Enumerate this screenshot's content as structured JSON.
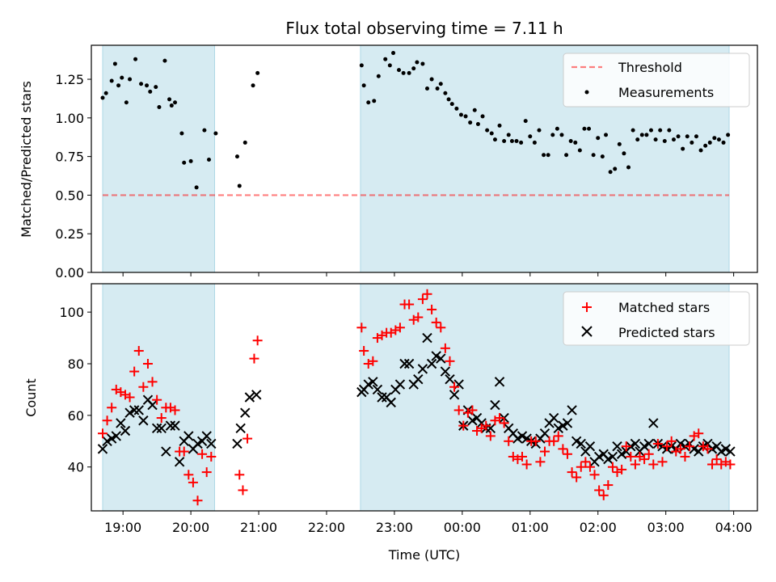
{
  "colors": {
    "band": "#add8e6",
    "threshold": "#ff0000",
    "measurement": "#000000",
    "matched": "#ff0000",
    "predicted": "#000000"
  },
  "chart_data": [
    {
      "type": "scatter",
      "title": "Flux total observing time = 7.11 h",
      "ylabel": "Matched/Predicted stars",
      "xlabel": "",
      "xlim": [
        "18:32",
        "04:21"
      ],
      "ylim": [
        0,
        1.47
      ],
      "yticks": [
        "0.00",
        "0.25",
        "0.50",
        "0.75",
        "1.00",
        "1.25"
      ],
      "shaded_intervals": [
        [
          "18:42",
          "20:21"
        ],
        [
          "22:30",
          "03:56"
        ]
      ],
      "threshold": {
        "name": "Threshold",
        "value": 0.5,
        "x_range": [
          "18:42",
          "03:56"
        ]
      },
      "legend": {
        "position": "top-right",
        "entries": [
          "Threshold",
          "Measurements"
        ]
      },
      "series": [
        {
          "name": "Measurements",
          "marker": "dot",
          "x": [
            "18:42",
            "18:45",
            "18:50",
            "18:53",
            "18:56",
            "18:59",
            "19:03",
            "19:06",
            "19:11",
            "19:16",
            "19:21",
            "19:24",
            "19:29",
            "19:32",
            "19:37",
            "19:41",
            "19:43",
            "19:46",
            "19:52",
            "19:54",
            "20:00",
            "20:05",
            "20:12",
            "20:16",
            "20:22",
            "20:41",
            "20:43",
            "20:48",
            "20:55",
            "20:59",
            "22:31",
            "22:33",
            "22:37",
            "22:42",
            "22:46",
            "22:52",
            "22:56",
            "22:59",
            "23:04",
            "23:08",
            "23:13",
            "23:17",
            "23:20",
            "23:25",
            "23:29",
            "23:33",
            "23:38",
            "23:41",
            "23:45",
            "23:48",
            "23:51",
            "23:55",
            "23:59",
            "00:03",
            "00:07",
            "00:11",
            "00:14",
            "00:18",
            "00:22",
            "00:26",
            "00:29",
            "00:33",
            "00:37",
            "00:41",
            "00:44",
            "00:48",
            "00:52",
            "00:56",
            "01:00",
            "01:04",
            "01:08",
            "01:12",
            "01:16",
            "01:20",
            "01:24",
            "01:28",
            "01:32",
            "01:36",
            "01:40",
            "01:44",
            "01:48",
            "01:52",
            "01:56",
            "02:00",
            "02:04",
            "02:07",
            "02:11",
            "02:15",
            "02:19",
            "02:23",
            "02:27",
            "02:31",
            "02:35",
            "02:39",
            "02:43",
            "02:47",
            "02:51",
            "02:55",
            "02:59",
            "03:03",
            "03:07",
            "03:11",
            "03:15",
            "03:19",
            "03:23",
            "03:27",
            "03:31",
            "03:35",
            "03:39",
            "03:43",
            "03:47",
            "03:51",
            "03:55"
          ],
          "y": [
            1.13,
            1.16,
            1.24,
            1.35,
            1.21,
            1.26,
            1.1,
            1.25,
            1.38,
            1.22,
            1.21,
            1.17,
            1.2,
            1.07,
            1.37,
            1.12,
            1.08,
            1.1,
            0.9,
            0.71,
            0.72,
            0.55,
            0.92,
            0.73,
            0.9,
            0.75,
            0.56,
            0.84,
            1.21,
            1.29,
            1.34,
            1.21,
            1.1,
            1.11,
            1.27,
            1.38,
            1.34,
            1.42,
            1.31,
            1.29,
            1.29,
            1.32,
            1.36,
            1.35,
            1.19,
            1.25,
            1.19,
            1.22,
            1.16,
            1.12,
            1.09,
            1.06,
            1.02,
            1.01,
            0.97,
            1.05,
            0.96,
            1.01,
            0.92,
            0.9,
            0.86,
            0.95,
            0.85,
            0.89,
            0.85,
            0.85,
            0.84,
            0.98,
            0.88,
            0.84,
            0.92,
            0.76,
            0.76,
            0.89,
            0.93,
            0.89,
            0.76,
            0.85,
            0.84,
            0.79,
            0.93,
            0.93,
            0.76,
            0.87,
            0.75,
            0.89,
            0.65,
            0.67,
            0.83,
            0.77,
            0.68,
            0.92,
            0.86,
            0.89,
            0.89,
            0.92,
            0.86,
            0.92,
            0.85,
            0.92,
            0.86,
            0.88,
            0.8,
            0.88,
            0.84,
            0.88,
            0.79,
            0.82,
            0.84,
            0.87,
            0.86,
            0.84,
            0.89
          ]
        }
      ]
    },
    {
      "type": "scatter",
      "title": "",
      "ylabel": "Count",
      "xlabel": "Time (UTC)",
      "xlim": [
        "18:32",
        "04:21"
      ],
      "ylim": [
        23,
        111
      ],
      "yticks": [
        "40",
        "60",
        "80",
        "100"
      ],
      "xticks": [
        "19:00",
        "20:00",
        "21:00",
        "22:00",
        "23:00",
        "00:00",
        "01:00",
        "02:00",
        "03:00",
        "04:00"
      ],
      "shaded_intervals": [
        [
          "18:42",
          "20:21"
        ],
        [
          "22:30",
          "03:56"
        ]
      ],
      "legend": {
        "position": "top-right",
        "entries": [
          "Matched stars",
          "Predicted stars"
        ]
      },
      "series": [
        {
          "name": "Matched stars",
          "marker": "plus",
          "x": [
            "18:42",
            "18:46",
            "18:50",
            "18:54",
            "18:58",
            "19:02",
            "19:06",
            "19:10",
            "19:14",
            "19:18",
            "19:22",
            "19:26",
            "19:30",
            "19:34",
            "19:38",
            "19:42",
            "19:46",
            "19:50",
            "19:54",
            "19:58",
            "20:02",
            "20:06",
            "20:10",
            "20:14",
            "20:18",
            "20:43",
            "20:46",
            "20:50",
            "20:56",
            "20:59",
            "22:31",
            "22:33",
            "22:37",
            "22:41",
            "22:45",
            "22:49",
            "22:53",
            "22:57",
            "23:01",
            "23:05",
            "23:09",
            "23:13",
            "23:17",
            "23:21",
            "23:25",
            "23:29",
            "23:33",
            "23:37",
            "23:41",
            "23:45",
            "23:49",
            "23:53",
            "23:57",
            "00:01",
            "00:05",
            "00:09",
            "00:13",
            "00:17",
            "00:21",
            "00:25",
            "00:29",
            "00:33",
            "00:37",
            "00:41",
            "00:45",
            "00:49",
            "00:53",
            "00:57",
            "01:01",
            "01:05",
            "01:09",
            "01:13",
            "01:17",
            "01:21",
            "01:25",
            "01:29",
            "01:33",
            "01:37",
            "01:41",
            "01:45",
            "01:49",
            "01:53",
            "01:57",
            "02:01",
            "02:05",
            "02:09",
            "02:13",
            "02:17",
            "02:21",
            "02:25",
            "02:29",
            "02:33",
            "02:37",
            "02:41",
            "02:45",
            "02:49",
            "02:53",
            "02:57",
            "03:01",
            "03:05",
            "03:09",
            "03:13",
            "03:17",
            "03:21",
            "03:25",
            "03:29",
            "03:33",
            "03:37",
            "03:41",
            "03:45",
            "03:49",
            "03:53",
            "03:57"
          ],
          "y": [
            53,
            58,
            63,
            70,
            69,
            68,
            67,
            77,
            85,
            71,
            80,
            73,
            66,
            59,
            63,
            63,
            62,
            46,
            46,
            37,
            34,
            27,
            45,
            38,
            44,
            37,
            31,
            51,
            82,
            89,
            94,
            85,
            80,
            81,
            90,
            91,
            92,
            92,
            93,
            94,
            103,
            103,
            97,
            98,
            105,
            107,
            101,
            96,
            94,
            86,
            81,
            71,
            62,
            56,
            61,
            62,
            54,
            55,
            56,
            52,
            58,
            59,
            57,
            50,
            44,
            43,
            44,
            41,
            50,
            50,
            42,
            46,
            50,
            50,
            52,
            47,
            45,
            38,
            36,
            40,
            42,
            40,
            37,
            31,
            29,
            33,
            40,
            38,
            39,
            48,
            44,
            41,
            44,
            43,
            45,
            41,
            49,
            42,
            48,
            50,
            46,
            47,
            44,
            48,
            52,
            53,
            48,
            47,
            41,
            43,
            41,
            42,
            41
          ]
        },
        {
          "name": "Predicted stars",
          "marker": "x",
          "x": [
            "18:42",
            "18:46",
            "18:50",
            "18:54",
            "18:58",
            "19:02",
            "19:06",
            "19:10",
            "19:14",
            "19:18",
            "19:22",
            "19:26",
            "19:30",
            "19:34",
            "19:38",
            "19:42",
            "19:46",
            "19:50",
            "19:54",
            "19:58",
            "20:02",
            "20:06",
            "20:10",
            "20:14",
            "20:18",
            "20:41",
            "20:44",
            "20:48",
            "20:52",
            "20:58",
            "22:31",
            "22:33",
            "22:37",
            "22:41",
            "22:45",
            "22:49",
            "22:53",
            "22:57",
            "23:01",
            "23:05",
            "23:09",
            "23:13",
            "23:17",
            "23:21",
            "23:25",
            "23:29",
            "23:33",
            "23:37",
            "23:41",
            "23:45",
            "23:49",
            "23:53",
            "23:57",
            "00:01",
            "00:05",
            "00:09",
            "00:13",
            "00:17",
            "00:21",
            "00:25",
            "00:29",
            "00:33",
            "00:37",
            "00:41",
            "00:45",
            "00:49",
            "00:53",
            "00:57",
            "01:01",
            "01:05",
            "01:09",
            "01:13",
            "01:17",
            "01:21",
            "01:25",
            "01:29",
            "01:33",
            "01:37",
            "01:41",
            "01:45",
            "01:49",
            "01:53",
            "01:57",
            "02:01",
            "02:05",
            "02:09",
            "02:13",
            "02:17",
            "02:21",
            "02:25",
            "02:29",
            "02:33",
            "02:37",
            "02:41",
            "02:45",
            "02:49",
            "02:53",
            "02:57",
            "03:01",
            "03:05",
            "03:09",
            "03:13",
            "03:17",
            "03:21",
            "03:25",
            "03:29",
            "03:33",
            "03:37",
            "03:41",
            "03:45",
            "03:49",
            "03:53",
            "03:57"
          ],
          "y": [
            47,
            50,
            51,
            52,
            57,
            54,
            61,
            62,
            62,
            58,
            66,
            64,
            55,
            55,
            46,
            56,
            56,
            42,
            50,
            52,
            47,
            49,
            50,
            52,
            49,
            49,
            55,
            61,
            67,
            68,
            69,
            70,
            72,
            73,
            70,
            67,
            67,
            65,
            70,
            72,
            80,
            80,
            72,
            74,
            78,
            90,
            80,
            83,
            82,
            77,
            74,
            68,
            72,
            56,
            62,
            58,
            59,
            57,
            55,
            55,
            64,
            73,
            59,
            55,
            53,
            51,
            52,
            51,
            50,
            49,
            51,
            53,
            57,
            59,
            55,
            56,
            57,
            62,
            50,
            49,
            46,
            48,
            42,
            44,
            45,
            43,
            44,
            48,
            45,
            46,
            48,
            49,
            46,
            48,
            49,
            57,
            49,
            48,
            47,
            48,
            47,
            49,
            48,
            49,
            47,
            46,
            48,
            49,
            47,
            48,
            46,
            47,
            46
          ]
        }
      ]
    }
  ]
}
